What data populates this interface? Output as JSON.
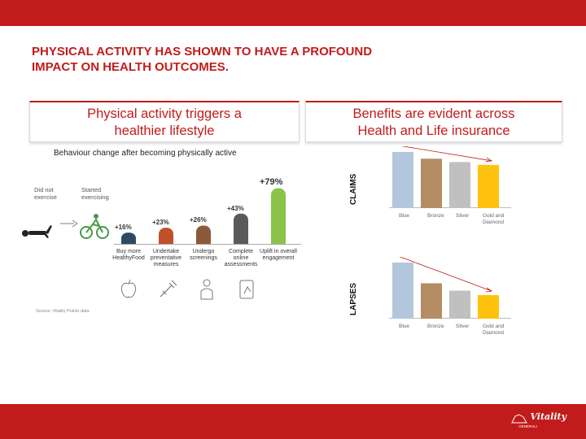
{
  "slide": {
    "title_line1": "PHYSICAL ACTIVITY HAS SHOWN TO HAVE A PROFOUND",
    "title_line2": "IMPACT ON HEALTH OUTCOMES."
  },
  "left_panel": {
    "heading_line1": "Physical activity triggers a",
    "heading_line2": "healthier lifestyle",
    "subtitle": "Behaviour change after becoming physically active",
    "did_not_exercise": "Did not exercise",
    "started_exercising": "Started exercising",
    "source": "Source: Vitality Points data"
  },
  "right_panel": {
    "heading_line1": "Benefits are evident across",
    "heading_line2": "Health and Life insurance",
    "claims_label": "CLAIMS",
    "lapses_label": "LAPSES"
  },
  "chart_data": [
    {
      "type": "bar",
      "title": "Behaviour change after becoming physically active",
      "categories": [
        "Buy more HealthyFood",
        "Undertake preventative measures",
        "Undergo screenings",
        "Complete online assessments",
        "Uplift in overall engagement"
      ],
      "values": [
        16,
        23,
        26,
        43,
        79
      ],
      "labels": [
        "+16%",
        "+23%",
        "+26%",
        "+43%",
        "+79%"
      ],
      "ylim": [
        0,
        90
      ],
      "colors": [
        "#2e4a62",
        "#c0502a",
        "#8a5a3a",
        "#5a5a5a",
        "#8bc34a"
      ]
    },
    {
      "type": "bar",
      "title": "CLAIMS",
      "categories": [
        "Blue",
        "Bronze",
        "Silver",
        "Gold and Diamond"
      ],
      "values": [
        100,
        88,
        82,
        77
      ],
      "ylim": [
        0,
        110
      ],
      "colors": [
        "#b3c7dc",
        "#b48d65",
        "#c0c0c0",
        "#ffc20e"
      ]
    },
    {
      "type": "bar",
      "title": "LAPSES",
      "categories": [
        "Blue",
        "Bronze",
        "Silver",
        "Gold and Diamond"
      ],
      "values": [
        100,
        63,
        50,
        42
      ],
      "ylim": [
        0,
        110
      ],
      "colors": [
        "#b3c7dc",
        "#b48d65",
        "#c0c0c0",
        "#ffc20e"
      ]
    }
  ],
  "footer": {
    "logo_text": "Vitality",
    "logo_sub": "GENERALI"
  },
  "colors": {
    "brand_red": "#c21b1b"
  }
}
